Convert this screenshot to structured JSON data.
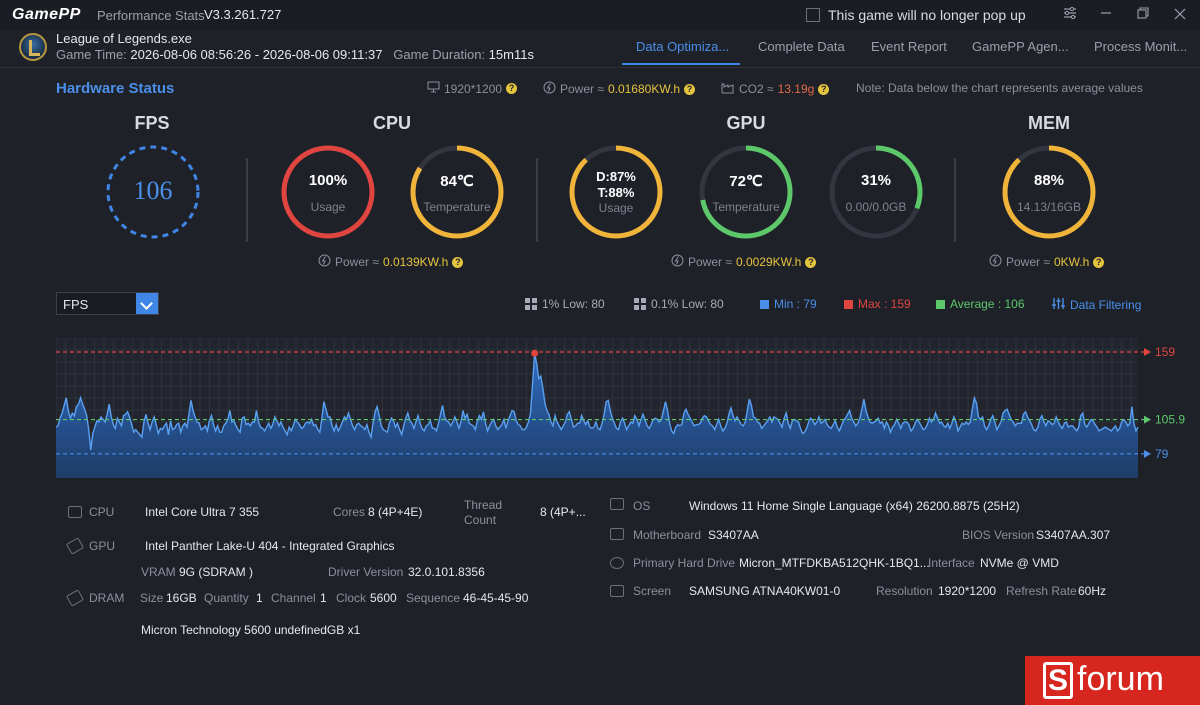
{
  "titlebar": {
    "logo": "GamePP",
    "app_name": "Performance Stats",
    "version": "V3.3.261.727",
    "popup_checkbox_label": "This game will no longer pop up"
  },
  "game": {
    "name": "League of Legends.exe",
    "time_label": "Game Time:",
    "time_range": "2026-08-06 08:56:26 - 2026-08-06 09:11:37",
    "duration_label": "Game Duration:",
    "duration": "15m11s"
  },
  "tabs": [
    {
      "label": "Data Optimiza...",
      "active": true
    },
    {
      "label": "Complete Data",
      "active": false
    },
    {
      "label": "Event Report",
      "active": false
    },
    {
      "label": "GamePP Agen...",
      "active": false
    },
    {
      "label": "Process Monit...",
      "active": false
    }
  ],
  "hardware_status": {
    "title": "Hardware Status",
    "resolution": "1920*1200",
    "power_label": "Power ≈",
    "power_value": "0.01680KW.h",
    "co2_label": "CO2 ≈",
    "co2_value": "13.19g",
    "note": "Note: Data below the chart represents average values"
  },
  "fps_section": {
    "title": "FPS",
    "value": "106"
  },
  "cpu_section": {
    "title": "CPU",
    "usage_value": "100%",
    "usage_label": "Usage",
    "usage_fraction": 1.0,
    "temp_value": "84℃",
    "temp_label": "Temperature",
    "temp_fraction": 0.84,
    "power_label": "Power ≈",
    "power_value": "0.0139KW.h"
  },
  "gpu_section": {
    "title": "GPU",
    "usage_value_d": "D:87%",
    "usage_value_t": "T:88%",
    "usage_label": "Usage",
    "usage_fraction": 0.88,
    "temp_value": "72℃",
    "temp_label": "Temperature",
    "temp_fraction": 0.72,
    "vram_value": "31%",
    "vram_label": "0.00/0.0GB",
    "vram_fraction": 0.31,
    "power_label": "Power ≈",
    "power_value": "0.0029KW.h"
  },
  "mem_section": {
    "title": "MEM",
    "value": "88%",
    "label": "14.13/16GB",
    "fraction": 0.88,
    "power_label": "Power ≈",
    "power_value": "0KW.h"
  },
  "chart_controls": {
    "metric_select": "FPS",
    "low1": "1% Low: 80",
    "low01": "0.1% Low: 80",
    "min": "Min : 79",
    "max": "Max : 159",
    "average": "Average : 106",
    "filter": "Data Filtering"
  },
  "colors": {
    "accent": "#3f86e6",
    "red": "#e0453f",
    "yellow": "#f0b43a",
    "green": "#5cc86a",
    "min": "#4a8fe8",
    "max": "#e0453f",
    "average": "#5cc86a"
  },
  "chart_data": {
    "type": "area",
    "title": "",
    "series": [
      {
        "name": "",
        "values": [
          100,
          101,
          107,
          111,
          117,
          123,
          113,
          107,
          111,
          109,
          116,
          118,
          123,
          118,
          114,
          109,
          98,
          82,
          95,
          100,
          105,
          104,
          108,
          106,
          104,
          110,
          118,
          108,
          102,
          99,
          107,
          104,
          101,
          109,
          110,
          112,
          108,
          102,
          96,
          98,
          96,
          94,
          92,
          104,
          110,
          103,
          98,
          104,
          108,
          102,
          95,
          99,
          98,
          101,
          103,
          94,
          105,
          98,
          99,
          102,
          103,
          96,
          101,
          103,
          100,
          110,
          121,
          113,
          108,
          104,
          103,
          98,
          99,
          101,
          97,
          105,
          109,
          102,
          97,
          101,
          96,
          96,
          101,
          103,
          106,
          113,
          104,
          105,
          101,
          98,
          96,
          107,
          108,
          102,
          103,
          101,
          104,
          104,
          113,
          104,
          100,
          99,
          97,
          100,
          103,
          99,
          102,
          108,
          105,
          101,
          104,
          100,
          97,
          94,
          100,
          97,
          101,
          106,
          104,
          102,
          99,
          100,
          103,
          104,
          103,
          106,
          101,
          102,
          98,
          96,
          107,
          120,
          114,
          108,
          108,
          101,
          97,
          102,
          97,
          100,
          104,
          108,
          106,
          111,
          106,
          101,
          98,
          102,
          103,
          101,
          100,
          98,
          102,
          96,
          92,
          103,
          112,
          116,
          109,
          101,
          98,
          97,
          96,
          103,
          107,
          105,
          100,
          103,
          98,
          94,
          101,
          107,
          111,
          105,
          103,
          99,
          104,
          109,
          103,
          99,
          97,
          101,
          102,
          105,
          99,
          99,
          97,
          103,
          110,
          117,
          108,
          105,
          104,
          101,
          104,
          108,
          104,
          99,
          104,
          113,
          107,
          110,
          103,
          102,
          101,
          98,
          105,
          109,
          106,
          112,
          103,
          97,
          101,
          104,
          106,
          101,
          98,
          100,
          102,
          106,
          99,
          105,
          109,
          113,
          112,
          105,
          102,
          101,
          98,
          98,
          100,
          104,
          111,
          134,
          158,
          150,
          138,
          140,
          131,
          119,
          113,
          110,
          104,
          101,
          109,
          104,
          101,
          98,
          101,
          104,
          110,
          112,
          106,
          100,
          101,
          103,
          103,
          109,
          105,
          102,
          105,
          100,
          99,
          100,
          104,
          99,
          98,
          103,
          110,
          120,
          121,
          113,
          107,
          103,
          99,
          98,
          104,
          107,
          103,
          98,
          101,
          104,
          103,
          109,
          106,
          101,
          106,
          110,
          106,
          101,
          99,
          102,
          106,
          107,
          106,
          104,
          106,
          113,
          120,
          113,
          103,
          97,
          95,
          100,
          102,
          101,
          102,
          111,
          114,
          110,
          107,
          104,
          101,
          102,
          102,
          103,
          107,
          109,
          108,
          105,
          102,
          101,
          98,
          102,
          106,
          101,
          97,
          99,
          103,
          110,
          115,
          109,
          105,
          108,
          105,
          102,
          101,
          104,
          113,
          122,
          117,
          108,
          107,
          104,
          103,
          99,
          101,
          103,
          105,
          108,
          104,
          108,
          107,
          106,
          103,
          100,
          107,
          111,
          103,
          99,
          105,
          106,
          105,
          104,
          99,
          95,
          96,
          99,
          104,
          107,
          105,
          102,
          104,
          108,
          103,
          104,
          106,
          102,
          100,
          99,
          102,
          105,
          100,
          97,
          101,
          105,
          107,
          110,
          113,
          107,
          104,
          101,
          103,
          107,
          114,
          122,
          113,
          108,
          104,
          103,
          104,
          105,
          107,
          103,
          104,
          99,
          104,
          101,
          96,
          100,
          102,
          106,
          103,
          99,
          103,
          104,
          104,
          102,
          97,
          99,
          103,
          106,
          104,
          101,
          98,
          99,
          102,
          107,
          104,
          106,
          111,
          107,
          103,
          104,
          101,
          100,
          103,
          99,
          103,
          108,
          104,
          97,
          100,
          103,
          102,
          104,
          102,
          104,
          114,
          123,
          119,
          108,
          106,
          108,
          101,
          98,
          101,
          106,
          109,
          104,
          98,
          101,
          104,
          111,
          113,
          114,
          110,
          106,
          104,
          101,
          103,
          103,
          103,
          110,
          112,
          108,
          105,
          102,
          98,
          97,
          100,
          106,
          109,
          104,
          101,
          105,
          104,
          102,
          103,
          108,
          104,
          101,
          99,
          103,
          104,
          100,
          101,
          101,
          99,
          97,
          100,
          109,
          111,
          102,
          100,
          103,
          106,
          105,
          102,
          100,
          97,
          98,
          99,
          100,
          99,
          98,
          97,
          99,
          101,
          97,
          99,
          104,
          106,
          104,
          101,
          103,
          116,
          103,
          97,
          100
        ],
        "color": "#3f86e6"
      }
    ],
    "ylim": [
      60,
      170
    ],
    "reference_lines": [
      {
        "label": "159",
        "value": 159,
        "color": "#e0453f"
      },
      {
        "label": "105.9",
        "value": 105.9,
        "color": "#5cc86a"
      },
      {
        "label": "79",
        "value": 79,
        "color": "#4a8fe8"
      }
    ],
    "grid": true
  },
  "hardware_info": {
    "cpu_label": "CPU",
    "cpu_value": "Intel Core Ultra 7 355",
    "cores_label": "Cores",
    "cores_value": "8 (4P+4E)",
    "thread_label_1": "Thread",
    "thread_label_2": "Count",
    "thread_value": "8 (4P+...",
    "gpu_label": "GPU",
    "gpu_value": "Intel Panther Lake-U 404 - Integrated Graphics",
    "vram_label": "VRAM",
    "vram_value": "9G (SDRAM )",
    "driver_label": "Driver Version",
    "driver_value": "32.0.101.8356",
    "dram_label": "DRAM",
    "size_label": "Size",
    "size_value": "16GB",
    "quantity_label": "Quantity",
    "quantity_value": "1",
    "channel_label": "Channel",
    "channel_value": "1",
    "clock_label": "Clock",
    "clock_value": "5600",
    "sequence_label": "Sequence",
    "sequence_value": "46-45-45-90",
    "dram_model": "Micron Technology 5600 undefinedGB x1",
    "os_label": "OS",
    "os_value": "Windows 11 Home Single Language (x64) 26200.8875 (25H2)",
    "mb_label": "Motherboard",
    "mb_value": "S3407AA",
    "bios_label": "BIOS Version",
    "bios_value": "S3407AA.307",
    "disk_label": "Primary Hard Drive",
    "disk_value": "Micron_MTFDKBA512QHK-1BQ1...",
    "interface_label": "Interface",
    "interface_value": "NVMe @ VMD",
    "screen_label": "Screen",
    "screen_value": "SAMSUNG ATNA40KW01-0",
    "resolution_label": "Resolution",
    "resolution_value": "1920*1200",
    "refresh_label": "Refresh Rate",
    "refresh_value": "60Hz"
  },
  "watermark": {
    "text": "forum",
    "letter": "S"
  }
}
